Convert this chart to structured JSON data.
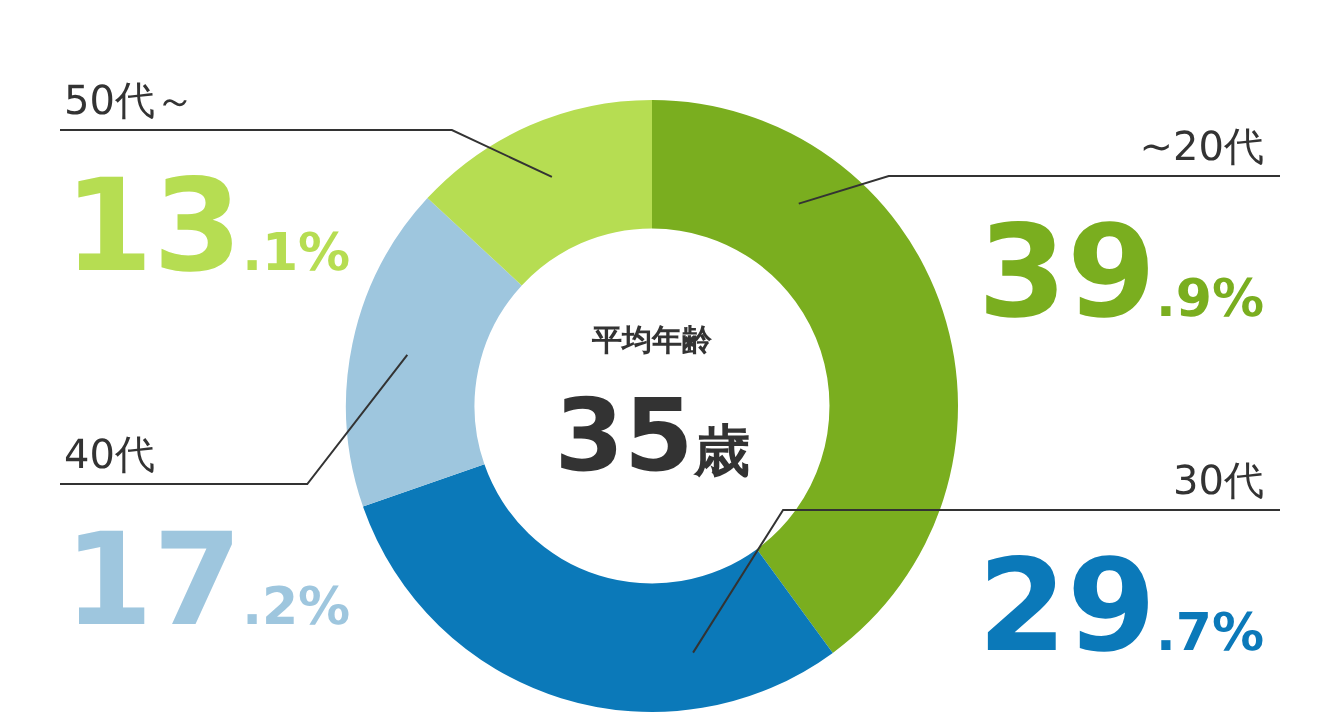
{
  "chart_data": {
    "type": "donut",
    "categories": [
      "~20代",
      "30代",
      "40代",
      "50代～"
    ],
    "values": [
      39.9,
      29.7,
      17.2,
      13.1
    ],
    "colors": [
      "#7aae1f",
      "#0b79b9",
      "#9ec6de",
      "#b6dd52"
    ],
    "value_labels": [
      "39.9%",
      "29.7%",
      "17.2%",
      "13.1%"
    ],
    "annotations": [
      "平均年齢",
      "35歳"
    ],
    "legend": false
  }
}
